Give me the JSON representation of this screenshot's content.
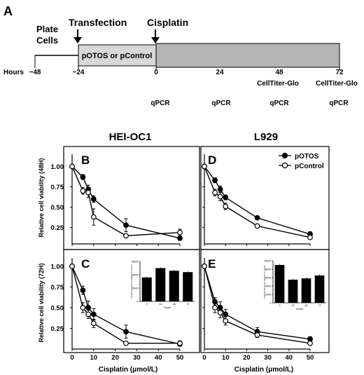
{
  "panel_a": {
    "letter": "A",
    "labels": {
      "plate_line1": "Plate",
      "plate_line2": "Cells",
      "transfection": "Transfection",
      "cisplatin": "Cisplatin",
      "vector_box": "pOTOS or pControl",
      "hours_label": "Hours",
      "cell_titer": "CellTiter-Glo",
      "qpcr": "qPCR"
    },
    "hours": [
      "−48",
      "−24",
      "0",
      "24",
      "48",
      "72"
    ],
    "celltiter_at": [
      "48",
      "72"
    ],
    "qpcr_at": [
      "0",
      "24",
      "48",
      "72"
    ]
  },
  "headers": {
    "left": "HEI-OC1",
    "right": "L929"
  },
  "axis_labels": {
    "ylabel_top": "Relative cell viability (48H)",
    "ylabel_bottom": "Relative cell viability (72H)",
    "xlabel": "Cisplatin (μmol/L)"
  },
  "legend": {
    "potos": "pOTOS",
    "pcontrol": "pControl"
  },
  "colors": {
    "potos": "#000000",
    "pcontrol": "#ffffff",
    "timeline_bar": "#b5b5b5",
    "vector_box": "#d8d8d8"
  },
  "chart_data": [
    {
      "panel": "B",
      "type": "line",
      "cell_line": "HEI-OC1",
      "timepoint": "48H",
      "x": [
        0,
        5,
        7.5,
        10,
        25,
        50
      ],
      "xticks": [
        "0",
        "10",
        "20",
        "30",
        "40",
        "50"
      ],
      "yticks": [
        "0.25",
        "0.50",
        "0.75",
        "1.00"
      ],
      "xlim": [
        0,
        50
      ],
      "ylim": [
        0.05,
        1.15
      ],
      "series": [
        {
          "name": "pOTOS",
          "values": [
            1.0,
            0.87,
            0.72,
            0.6,
            0.28,
            0.12
          ],
          "errors": [
            0,
            0.03,
            0.05,
            0.04,
            0.08,
            0.02
          ]
        },
        {
          "name": "pControl",
          "values": [
            1.0,
            0.7,
            0.68,
            0.38,
            0.15,
            0.19
          ],
          "errors": [
            0,
            0.04,
            0.06,
            0.1,
            0.02,
            0.04
          ]
        }
      ]
    },
    {
      "panel": "C",
      "type": "line",
      "cell_line": "HEI-OC1",
      "timepoint": "72H",
      "x": [
        0,
        5,
        7.5,
        10,
        25,
        50
      ],
      "xticks": [
        "0",
        "10",
        "20",
        "30",
        "40",
        "50"
      ],
      "yticks": [
        "0.25",
        "0.50",
        "0.75",
        "1.00"
      ],
      "xlim": [
        0,
        50
      ],
      "ylim": [
        0.0,
        1.1
      ],
      "series": [
        {
          "name": "pOTOS",
          "values": [
            1.0,
            0.71,
            0.5,
            0.42,
            0.21,
            0.06
          ],
          "errors": [
            0,
            0.05,
            0.08,
            0.07,
            0.08,
            0.02
          ]
        },
        {
          "name": "pControl",
          "values": [
            1.0,
            0.5,
            0.42,
            0.31,
            0.07,
            0.07
          ],
          "errors": [
            0,
            0.06,
            0.05,
            0.05,
            0.02,
            0.03
          ]
        }
      ],
      "inset": {
        "type": "bar",
        "categories": [
          "0",
          "24",
          "48",
          "72"
        ],
        "values": [
          9000,
          12500,
          11500,
          11000
        ],
        "ylim": [
          0,
          15000
        ],
        "yticks": [
          "0",
          "5000",
          "10000",
          "15000"
        ],
        "ylabel": "OTOS expression relative to control",
        "xlabel": "Hours"
      }
    },
    {
      "panel": "D",
      "type": "line",
      "cell_line": "L929",
      "timepoint": "48H",
      "x": [
        0,
        5,
        7.5,
        10,
        25,
        50
      ],
      "xticks": [
        "0",
        "10",
        "20",
        "30",
        "40",
        "50"
      ],
      "yticks": [
        "0.25",
        "0.50",
        "0.75",
        "1.00"
      ],
      "xlim": [
        0,
        50
      ],
      "ylim": [
        0.05,
        1.15
      ],
      "series": [
        {
          "name": "pOTOS",
          "values": [
            1.0,
            0.83,
            0.72,
            0.62,
            0.37,
            0.17
          ],
          "errors": [
            0,
            0.03,
            0.04,
            0.03,
            0.02,
            0.03
          ]
        },
        {
          "name": "pControl",
          "values": [
            1.0,
            0.68,
            0.63,
            0.51,
            0.27,
            0.13
          ],
          "errors": [
            0,
            0.04,
            0.05,
            0.04,
            0.02,
            0.02
          ]
        }
      ]
    },
    {
      "panel": "E",
      "type": "line",
      "cell_line": "L929",
      "timepoint": "72H",
      "x": [
        0,
        5,
        7.5,
        10,
        25,
        50
      ],
      "xticks": [
        "0",
        "10",
        "20",
        "30",
        "40",
        "50"
      ],
      "yticks": [
        "0.25",
        "0.50",
        "0.75",
        "1.00"
      ],
      "xlim": [
        0,
        50
      ],
      "ylim": [
        0.0,
        1.1
      ],
      "series": [
        {
          "name": "pOTOS",
          "values": [
            1.0,
            0.57,
            0.5,
            0.42,
            0.21,
            0.12
          ],
          "errors": [
            0,
            0.05,
            0.07,
            0.06,
            0.05,
            0.03
          ]
        },
        {
          "name": "pControl",
          "values": [
            1.0,
            0.5,
            0.44,
            0.34,
            0.17,
            0.07
          ],
          "errors": [
            0,
            0.06,
            0.06,
            0.05,
            0.03,
            0.02
          ]
        }
      ],
      "inset": {
        "type": "bar",
        "categories": [
          "0",
          "24",
          "48",
          "72"
        ],
        "values": [
          9000,
          5500,
          5800,
          6500
        ],
        "ylim": [
          0,
          10000
        ],
        "yticks": [
          "0",
          "2000",
          "4000",
          "6000",
          "8000",
          "10000"
        ],
        "ylabel": "OTOS expression relative to control",
        "xlabel": "Hours"
      }
    }
  ]
}
